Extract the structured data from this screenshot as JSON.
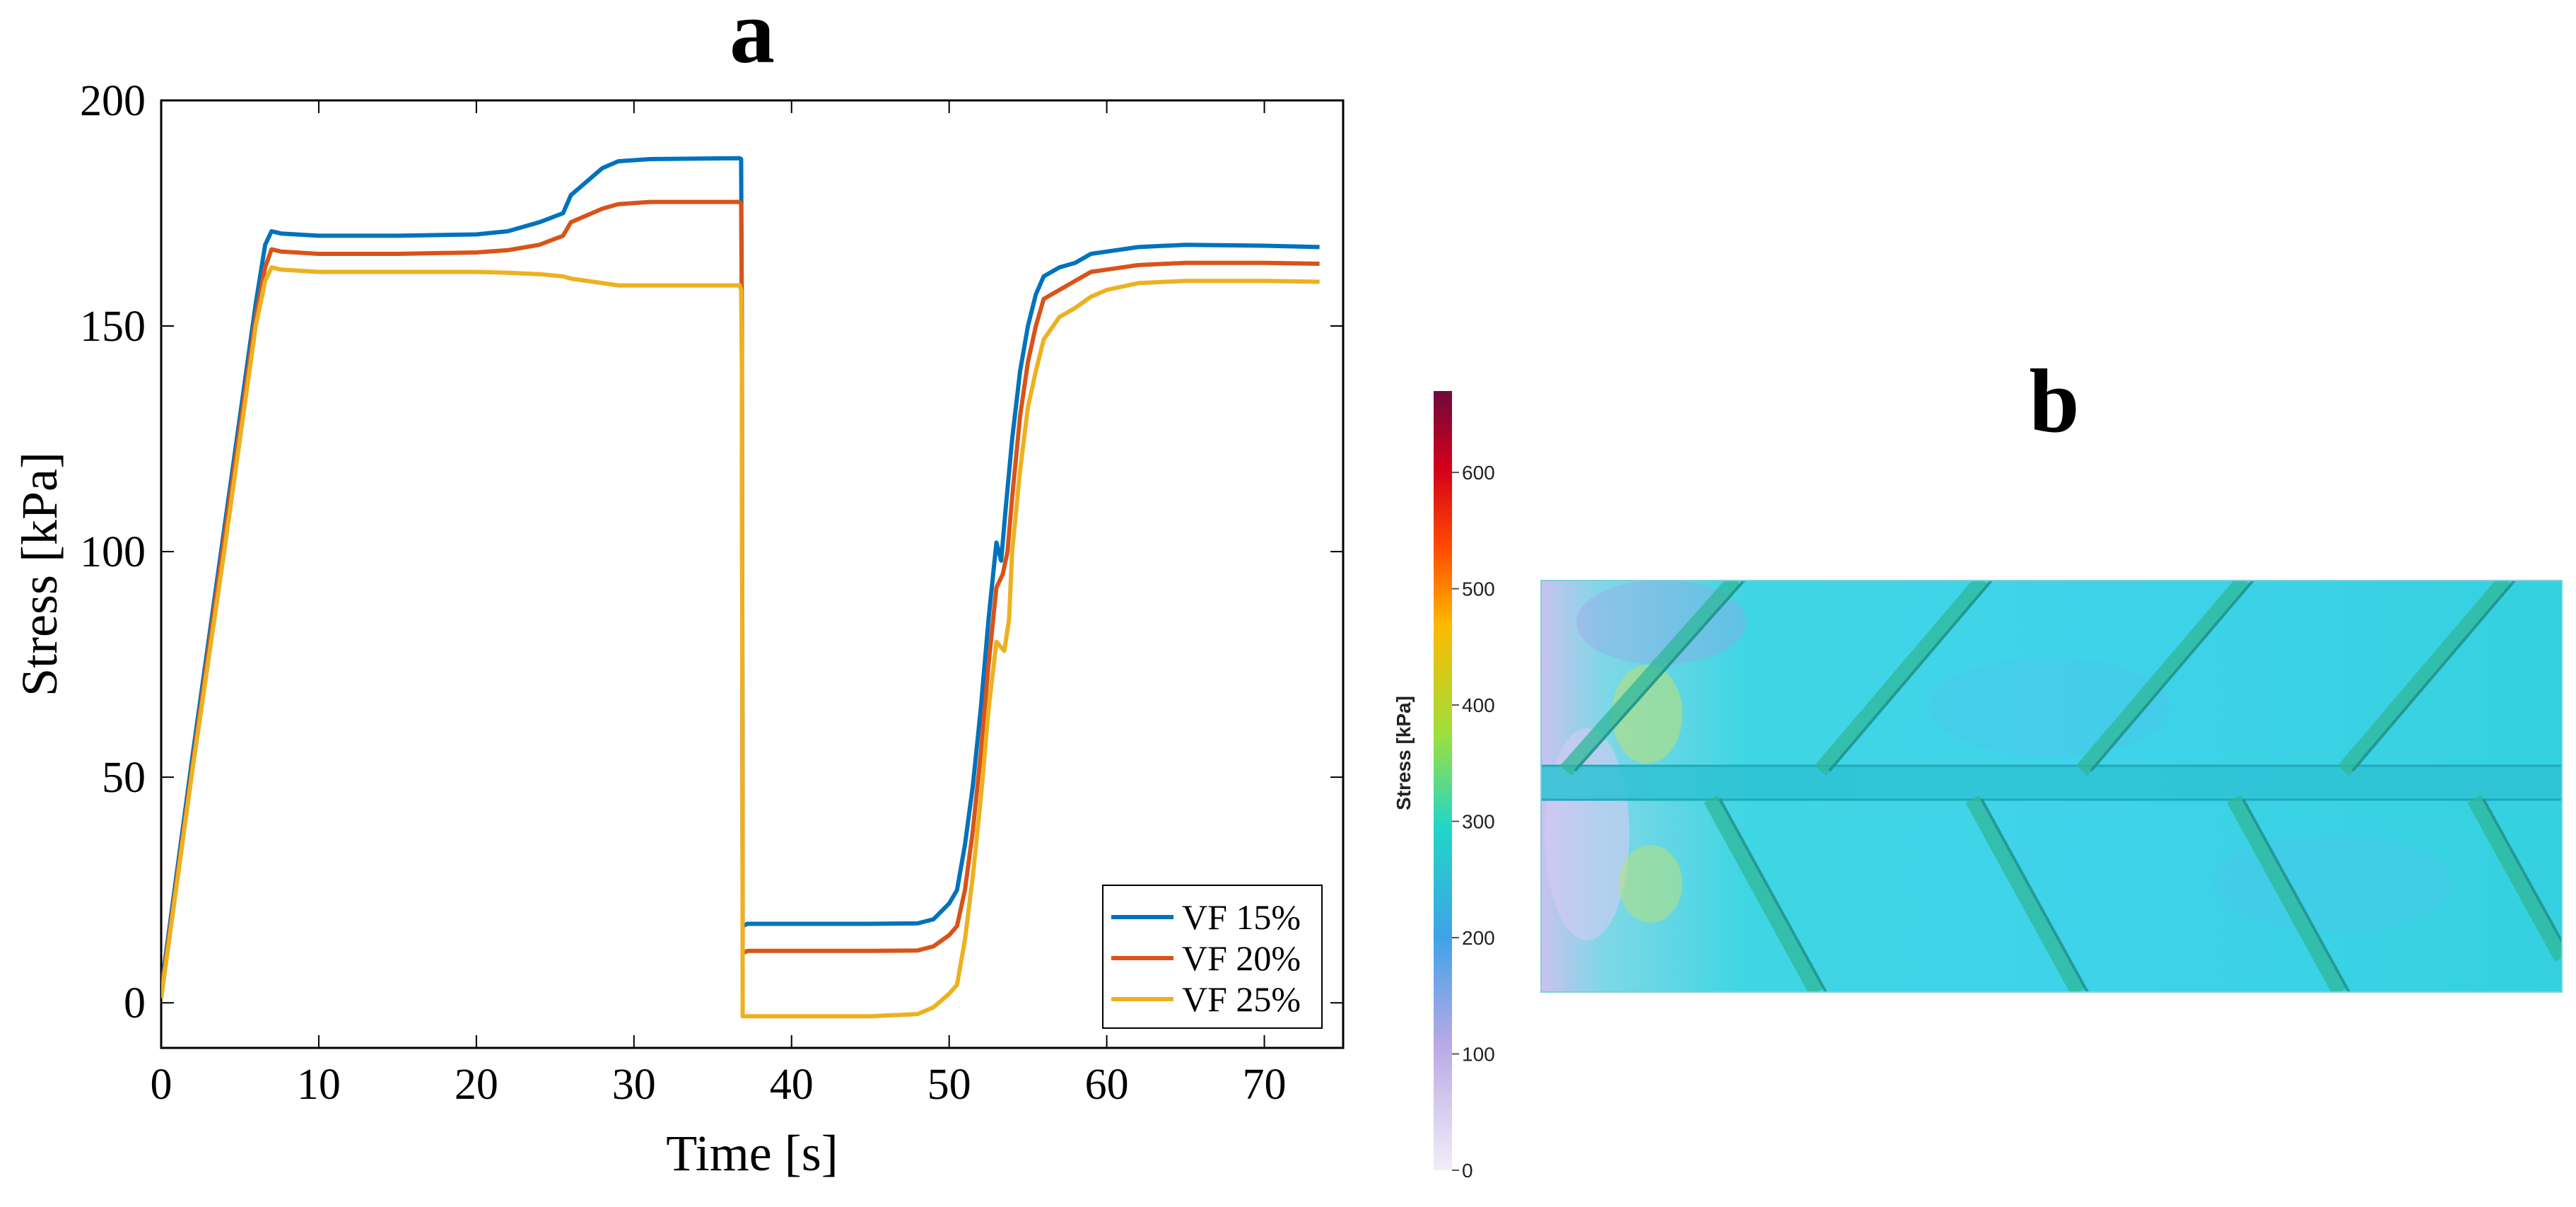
{
  "panels": {
    "a_label": "a",
    "b_label": "b"
  },
  "chart_data": {
    "type": "line",
    "title": "",
    "xlabel": "Time [s]",
    "ylabel": "Stress [kPa]",
    "xlim": [
      0,
      75
    ],
    "ylim": [
      -10,
      200
    ],
    "xticks": [
      "0",
      "10",
      "20",
      "30",
      "40",
      "50",
      "60",
      "70"
    ],
    "xtick_values": [
      0,
      10,
      20,
      30,
      40,
      50,
      60,
      70
    ],
    "yticks": [
      "0",
      "50",
      "100",
      "150",
      "200"
    ],
    "ytick_values": [
      0,
      50,
      100,
      150,
      200
    ],
    "grid": false,
    "legend_position": "bottom-right",
    "series": [
      {
        "name": "VF 15%",
        "color": "#0072BD",
        "points": [
          [
            0,
            3
          ],
          [
            2,
            55
          ],
          [
            4,
            105
          ],
          [
            6,
            155
          ],
          [
            6.6,
            168
          ],
          [
            7,
            171
          ],
          [
            7.6,
            170.5
          ],
          [
            10,
            170
          ],
          [
            15,
            170
          ],
          [
            20,
            170.3
          ],
          [
            22,
            171
          ],
          [
            24,
            173
          ],
          [
            25.5,
            175
          ],
          [
            26,
            179
          ],
          [
            28,
            185
          ],
          [
            29,
            186.5
          ],
          [
            31,
            187
          ],
          [
            36.7,
            187.2
          ],
          [
            36.8,
            187
          ],
          [
            36.85,
            150
          ],
          [
            36.9,
            17
          ],
          [
            37.2,
            17.5
          ],
          [
            40,
            17.5
          ],
          [
            45,
            17.5
          ],
          [
            48,
            17.6
          ],
          [
            49,
            18.5
          ],
          [
            50,
            22
          ],
          [
            50.5,
            25
          ],
          [
            51,
            35
          ],
          [
            51.5,
            48
          ],
          [
            52,
            65
          ],
          [
            52.5,
            85
          ],
          [
            53,
            102
          ],
          [
            53.3,
            98
          ],
          [
            53.6,
            110
          ],
          [
            54,
            125
          ],
          [
            54.5,
            140
          ],
          [
            55,
            150
          ],
          [
            55.5,
            157
          ],
          [
            56,
            161
          ],
          [
            57,
            163
          ],
          [
            58,
            164
          ],
          [
            59,
            166
          ],
          [
            60,
            166.5
          ],
          [
            62,
            167.5
          ],
          [
            65,
            168
          ],
          [
            70,
            167.8
          ],
          [
            73.5,
            167.5
          ]
        ]
      },
      {
        "name": "VF 20%",
        "color": "#D95319",
        "points": [
          [
            0,
            2
          ],
          [
            2,
            53
          ],
          [
            4,
            103
          ],
          [
            6,
            152
          ],
          [
            6.6,
            163
          ],
          [
            7,
            167
          ],
          [
            7.6,
            166.5
          ],
          [
            10,
            166
          ],
          [
            15,
            166
          ],
          [
            20,
            166.3
          ],
          [
            22,
            166.8
          ],
          [
            24,
            168
          ],
          [
            25.5,
            170
          ],
          [
            26,
            173
          ],
          [
            28,
            176
          ],
          [
            29,
            177
          ],
          [
            31,
            177.5
          ],
          [
            36.7,
            177.5
          ],
          [
            36.8,
            177
          ],
          [
            36.85,
            150
          ],
          [
            36.9,
            11
          ],
          [
            37.2,
            11.5
          ],
          [
            40,
            11.5
          ],
          [
            45,
            11.5
          ],
          [
            48,
            11.6
          ],
          [
            49,
            12.5
          ],
          [
            50,
            15
          ],
          [
            50.5,
            17
          ],
          [
            51,
            25
          ],
          [
            51.5,
            38
          ],
          [
            52,
            55
          ],
          [
            52.5,
            75
          ],
          [
            53,
            92
          ],
          [
            53.4,
            95
          ],
          [
            53.7,
            100
          ],
          [
            54,
            112
          ],
          [
            54.5,
            130
          ],
          [
            55,
            142
          ],
          [
            55.5,
            150
          ],
          [
            56,
            156
          ],
          [
            57,
            158
          ],
          [
            58,
            160
          ],
          [
            59,
            162
          ],
          [
            60,
            162.5
          ],
          [
            62,
            163.5
          ],
          [
            65,
            164
          ],
          [
            70,
            164
          ],
          [
            73.5,
            163.8
          ]
        ]
      },
      {
        "name": "VF 25%",
        "color": "#EDB120",
        "points": [
          [
            0,
            1
          ],
          [
            2,
            52
          ],
          [
            4,
            100
          ],
          [
            6,
            150
          ],
          [
            6.6,
            160
          ],
          [
            7,
            163
          ],
          [
            7.6,
            162.5
          ],
          [
            10,
            162
          ],
          [
            15,
            162
          ],
          [
            20,
            162
          ],
          [
            22,
            161.8
          ],
          [
            24,
            161.5
          ],
          [
            25.5,
            161
          ],
          [
            26,
            160.5
          ],
          [
            28,
            159.5
          ],
          [
            29,
            159
          ],
          [
            31,
            159
          ],
          [
            36.7,
            159
          ],
          [
            36.8,
            158
          ],
          [
            36.85,
            140
          ],
          [
            36.9,
            -3
          ],
          [
            37.2,
            -3
          ],
          [
            40,
            -3
          ],
          [
            45,
            -3
          ],
          [
            48,
            -2.5
          ],
          [
            49,
            -1
          ],
          [
            50,
            2
          ],
          [
            50.5,
            4
          ],
          [
            51,
            14
          ],
          [
            51.5,
            28
          ],
          [
            52,
            45
          ],
          [
            52.5,
            65
          ],
          [
            53,
            80
          ],
          [
            53.5,
            78
          ],
          [
            53.8,
            85
          ],
          [
            54,
            100
          ],
          [
            54.5,
            118
          ],
          [
            55,
            132
          ],
          [
            55.5,
            140
          ],
          [
            56,
            147
          ],
          [
            57,
            152
          ],
          [
            58,
            154
          ],
          [
            59,
            156.5
          ],
          [
            60,
            158
          ],
          [
            62,
            159.5
          ],
          [
            65,
            160
          ],
          [
            70,
            160
          ],
          [
            73.5,
            159.8
          ]
        ]
      }
    ]
  },
  "panel_b": {
    "colorbar_title": "Stress [kPa]",
    "colorbar_ticks": [
      "0",
      "100",
      "200",
      "300",
      "400",
      "500",
      "600"
    ],
    "colorbar_tick_values": [
      0,
      100,
      200,
      300,
      400,
      500,
      600
    ],
    "colorbar_max": 670,
    "colorbar_colors": [
      "#f2eef8",
      "#b9a9e6",
      "#3ea3e8",
      "#21d6c8",
      "#9ee03c",
      "#ffb800",
      "#ff4a00",
      "#d4001a",
      "#6e0a3c"
    ]
  }
}
